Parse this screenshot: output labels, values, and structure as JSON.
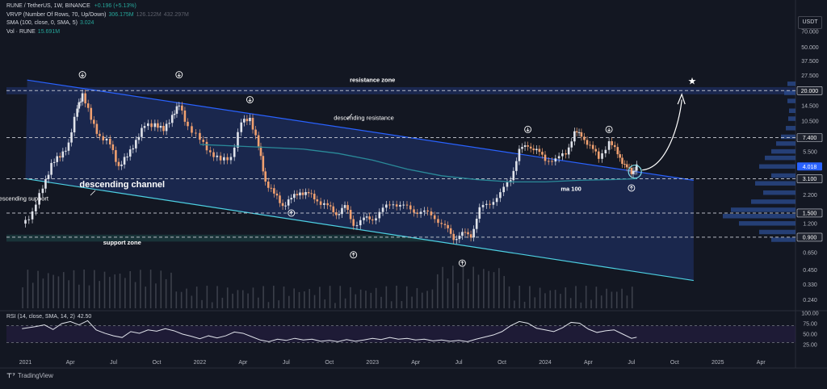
{
  "legend": {
    "symbol_line": "RUNE / TetherUS, 1W, BINANCE",
    "change": "+0.196 (+5.13%)",
    "vrvp_label": "VRVP (Number Of Rows, 70, Up/Down)",
    "vrvp_v1": "306.175M",
    "vrvp_v2": "126.122M",
    "vrvp_v3": "432.297M",
    "sma_label": "SMA (100, close, 0, SMA, 5)",
    "sma_value": "3.024",
    "vol_label": "Vol · RUNE",
    "vol_value": "15.691M"
  },
  "rsi_legend": {
    "label": "RSI (14, close, SMA, 14, 2)",
    "value": "42.50"
  },
  "currency": "USDT",
  "branding": "TradingView",
  "colors": {
    "background": "#131722",
    "up": "#26a69a",
    "down": "#ef5350",
    "up_candle": "#e0e3eb",
    "down_candle": "#f0a070",
    "channel_fill": "#1c2a55",
    "channel_line": "#2962ff",
    "support_line": "#4dd0e1",
    "ma": "#2a8a99",
    "rsi_line": "#e0e3eb",
    "grid": "#2a2e39"
  },
  "chart_data": [
    {
      "type": "line",
      "name": "RUNE/USDT weekly price",
      "scale": "log",
      "ylim": [
        0.2,
        100
      ],
      "x_ticks": [
        "2021",
        "Apr",
        "Jul",
        "Oct",
        "2022",
        "Apr",
        "Jul",
        "Oct",
        "2023",
        "Apr",
        "Jul",
        "Oct",
        "2024",
        "Apr",
        "Jul",
        "Oct",
        "2025",
        "Apr"
      ],
      "y_ticks": [
        70,
        50,
        37.5,
        27.5,
        14.5,
        10.5,
        5.5,
        2.2,
        1.2,
        0.65,
        0.45,
        0.33,
        0.24
      ],
      "price_labels": [
        {
          "value": 20.0,
          "label": "20.000",
          "style": "neutral"
        },
        {
          "value": 7.4,
          "label": "7.400",
          "style": "neutral"
        },
        {
          "value": 4.018,
          "label": "4.018",
          "style": "current"
        },
        {
          "value": 3.1,
          "label": "3.100",
          "style": "neutral"
        },
        {
          "value": 1.5,
          "label": "1.500",
          "style": "neutral"
        },
        {
          "value": 0.9,
          "label": "0.900",
          "style": "neutral"
        }
      ],
      "horizontal_levels": [
        20.0,
        7.4,
        3.1,
        1.5,
        0.9
      ],
      "annotations": [
        {
          "text": "resistance zone",
          "date": "2023.0",
          "value": 24
        },
        {
          "text": "descending resistance",
          "date": "2022.95",
          "value": 10.8
        },
        {
          "text": "descending channel",
          "date": "2021.55",
          "value": 2.6
        },
        {
          "text": "descending support",
          "date": "2020.97",
          "value": 1.95
        },
        {
          "text": "support zone",
          "date": "2021.55",
          "value": 0.77
        },
        {
          "text": "ma 100",
          "date": "2024.15",
          "value": 2.4
        }
      ],
      "series": [
        {
          "values": [
            [
              2020.97,
              1.2
            ],
            [
              2021.03,
              1.5
            ],
            [
              2021.09,
              2.6
            ],
            [
              2021.14,
              4.2
            ],
            [
              2021.19,
              5.0
            ],
            [
              2021.24,
              6.5
            ],
            [
              2021.29,
              14.0
            ],
            [
              2021.32,
              18.5
            ],
            [
              2021.37,
              11.0
            ],
            [
              2021.42,
              7.5
            ],
            [
              2021.48,
              6.5
            ],
            [
              2021.53,
              4.0
            ],
            [
              2021.58,
              5.0
            ],
            [
              2021.63,
              7.0
            ],
            [
              2021.68,
              9.5
            ],
            [
              2021.74,
              10.0
            ],
            [
              2021.79,
              8.5
            ],
            [
              2021.84,
              12.0
            ],
            [
              2021.88,
              14.5
            ],
            [
              2021.93,
              9.5
            ],
            [
              2022.0,
              7.0
            ],
            [
              2022.06,
              5.5
            ],
            [
              2022.12,
              4.5
            ],
            [
              2022.18,
              5.0
            ],
            [
              2022.24,
              10.0
            ],
            [
              2022.29,
              11.5
            ],
            [
              2022.34,
              6.0
            ],
            [
              2022.38,
              3.0
            ],
            [
              2022.43,
              2.2
            ],
            [
              2022.48,
              1.8
            ],
            [
              2022.53,
              2.0
            ],
            [
              2022.58,
              2.4
            ],
            [
              2022.63,
              2.2
            ],
            [
              2022.68,
              2.0
            ],
            [
              2022.74,
              1.7
            ],
            [
              2022.79,
              1.5
            ],
            [
              2022.84,
              1.7
            ],
            [
              2022.89,
              1.2
            ],
            [
              2022.95,
              1.3
            ],
            [
              2023.0,
              1.35
            ],
            [
              2023.06,
              1.6
            ],
            [
              2023.12,
              1.9
            ],
            [
              2023.18,
              1.7
            ],
            [
              2023.24,
              1.6
            ],
            [
              2023.3,
              1.5
            ],
            [
              2023.36,
              1.4
            ],
            [
              2023.42,
              1.1
            ],
            [
              2023.47,
              0.9
            ],
            [
              2023.52,
              0.95
            ],
            [
              2023.57,
              0.95
            ],
            [
              2023.62,
              1.6
            ],
            [
              2023.68,
              1.9
            ],
            [
              2023.74,
              2.2
            ],
            [
              2023.8,
              3.2
            ],
            [
              2023.85,
              5.5
            ],
            [
              2023.9,
              6.5
            ],
            [
              2023.95,
              5.5
            ],
            [
              2024.0,
              4.8
            ],
            [
              2024.06,
              4.5
            ],
            [
              2024.12,
              5.5
            ],
            [
              2024.17,
              8.0
            ],
            [
              2024.21,
              8.0
            ],
            [
              2024.26,
              6.0
            ],
            [
              2024.31,
              5.0
            ],
            [
              2024.37,
              6.5
            ],
            [
              2024.42,
              5.5
            ],
            [
              2024.46,
              4.0
            ],
            [
              2024.5,
              3.6
            ],
            [
              2024.53,
              4.0
            ]
          ]
        },
        {
          "name": "ma 100",
          "values": [
            [
              2022.0,
              6.4
            ],
            [
              2022.2,
              6.2
            ],
            [
              2022.4,
              6.0
            ],
            [
              2022.6,
              5.8
            ],
            [
              2022.8,
              5.3
            ],
            [
              2023.0,
              4.6
            ],
            [
              2023.2,
              3.8
            ],
            [
              2023.4,
              3.3
            ],
            [
              2023.6,
              3.05
            ],
            [
              2023.8,
              2.9
            ],
            [
              2024.0,
              2.9
            ],
            [
              2024.2,
              3.0
            ],
            [
              2024.4,
              3.05
            ],
            [
              2024.53,
              3.1
            ]
          ]
        }
      ]
    },
    {
      "type": "line",
      "name": "RSI",
      "ylim": [
        0,
        100
      ],
      "y_ticks": [
        100,
        75,
        50,
        25
      ],
      "bands": [
        70,
        30
      ],
      "values": [
        [
          2020.97,
          63
        ],
        [
          2021.05,
          68
        ],
        [
          2021.1,
          72
        ],
        [
          2021.15,
          61
        ],
        [
          2021.2,
          75
        ],
        [
          2021.25,
          80
        ],
        [
          2021.3,
          72
        ],
        [
          2021.35,
          82
        ],
        [
          2021.4,
          60
        ],
        [
          2021.45,
          52
        ],
        [
          2021.5,
          46
        ],
        [
          2021.55,
          42
        ],
        [
          2021.6,
          56
        ],
        [
          2021.65,
          52
        ],
        [
          2021.7,
          60
        ],
        [
          2021.75,
          57
        ],
        [
          2021.8,
          63
        ],
        [
          2021.85,
          58
        ],
        [
          2021.9,
          50
        ],
        [
          2021.95,
          45
        ],
        [
          2022.0,
          39
        ],
        [
          2022.05,
          46
        ],
        [
          2022.1,
          41
        ],
        [
          2022.15,
          46
        ],
        [
          2022.2,
          55
        ],
        [
          2022.25,
          52
        ],
        [
          2022.3,
          44
        ],
        [
          2022.35,
          36
        ],
        [
          2022.4,
          32
        ],
        [
          2022.45,
          38
        ],
        [
          2022.5,
          35
        ],
        [
          2022.55,
          40
        ],
        [
          2022.6,
          36
        ],
        [
          2022.65,
          38
        ],
        [
          2022.7,
          33
        ],
        [
          2022.75,
          35
        ],
        [
          2022.8,
          32
        ],
        [
          2022.85,
          37
        ],
        [
          2022.9,
          33
        ],
        [
          2022.95,
          36
        ],
        [
          2023.0,
          40
        ],
        [
          2023.05,
          37
        ],
        [
          2023.1,
          42
        ],
        [
          2023.15,
          38
        ],
        [
          2023.2,
          40
        ],
        [
          2023.25,
          36
        ],
        [
          2023.3,
          38
        ],
        [
          2023.35,
          34
        ],
        [
          2023.4,
          36
        ],
        [
          2023.45,
          33
        ],
        [
          2023.5,
          35
        ],
        [
          2023.55,
          32
        ],
        [
          2023.6,
          38
        ],
        [
          2023.65,
          43
        ],
        [
          2023.7,
          48
        ],
        [
          2023.75,
          56
        ],
        [
          2023.8,
          70
        ],
        [
          2023.85,
          80
        ],
        [
          2023.9,
          76
        ],
        [
          2023.95,
          64
        ],
        [
          2024.0,
          60
        ],
        [
          2024.05,
          56
        ],
        [
          2024.1,
          65
        ],
        [
          2024.15,
          78
        ],
        [
          2024.2,
          76
        ],
        [
          2024.25,
          62
        ],
        [
          2024.3,
          54
        ],
        [
          2024.35,
          58
        ],
        [
          2024.4,
          60
        ],
        [
          2024.45,
          50
        ],
        [
          2024.5,
          40
        ],
        [
          2024.53,
          42.5
        ]
      ]
    }
  ]
}
